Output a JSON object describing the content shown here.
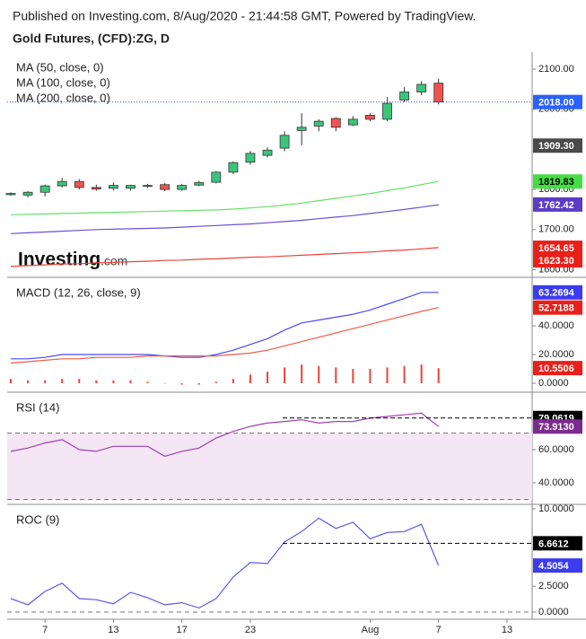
{
  "header": {
    "published": "Published on Investing.com, 8/Aug/2020 - 21:44:58 GMT, Powered by TradingView.",
    "title": "Gold Futures, (CFD):ZG, D",
    "logo": "Investing",
    "logo_suffix": ".com"
  },
  "x_axis": {
    "xlim": [
      -0.21,
      30.47
    ],
    "xticks": [
      {
        "value": 2,
        "label": "7"
      },
      {
        "value": 6,
        "label": "13"
      },
      {
        "value": 10,
        "label": "17"
      },
      {
        "value": 14,
        "label": "23"
      },
      {
        "value": 21,
        "label": "Aug"
      },
      {
        "value": 25,
        "label": "7"
      },
      {
        "value": 29,
        "label": "13"
      }
    ]
  },
  "chart_data": [
    {
      "type": "candlestick",
      "up_color": "#3cc47c",
      "down_color": "#ef5350",
      "open": [
        1787,
        1786,
        1793,
        1809,
        1820,
        1805,
        1803,
        1803,
        1809,
        1812,
        1800,
        1811,
        1818,
        1843,
        1868,
        1885,
        1903,
        1947,
        1958,
        1977,
        1961,
        1985,
        1975,
        2023,
        2043,
        2065
      ],
      "high": [
        1793,
        1796,
        1812,
        1829,
        1826,
        1812,
        1818,
        1812,
        1814,
        1816,
        1814,
        1822,
        1846,
        1870,
        1896,
        1905,
        1945,
        1990,
        1975,
        1980,
        1983,
        1990,
        2030,
        2055,
        2070,
        2076
      ],
      "low": [
        1784,
        1780,
        1783,
        1805,
        1800,
        1797,
        1797,
        1797,
        1804,
        1796,
        1797,
        1808,
        1815,
        1838,
        1862,
        1880,
        1895,
        1910,
        1945,
        1945,
        1958,
        1970,
        1970,
        2018,
        2035,
        2012
      ],
      "close": [
        1790,
        1793,
        1809,
        1820,
        1805,
        1801,
        1810,
        1810,
        1810,
        1800,
        1810,
        1817,
        1843,
        1867,
        1890,
        1898,
        1935,
        1955,
        1970,
        1955,
        1975,
        1975,
        2015,
        2043,
        2062,
        2018
      ],
      "series": [
        {
          "name": "MA (50, close, 0)",
          "color": "#66e066",
          "values": [
            1737,
            1738,
            1739,
            1740,
            1741,
            1742,
            1743,
            1744,
            1745,
            1746,
            1747,
            1748,
            1749,
            1751,
            1754,
            1757,
            1761,
            1766,
            1772,
            1778,
            1784,
            1790,
            1797,
            1804,
            1812,
            1820
          ]
        },
        {
          "name": "MA (100, close, 0)",
          "color": "#6a4fd8",
          "values": [
            1690,
            1692,
            1694,
            1696,
            1698,
            1700,
            1701,
            1702,
            1703,
            1704,
            1706,
            1708,
            1710,
            1712,
            1714,
            1717,
            1720,
            1723,
            1727,
            1731,
            1735,
            1740,
            1745,
            1750,
            1756,
            1762
          ]
        },
        {
          "name": "MA (200, close, 0)",
          "color": "#e8453c",
          "values": [
            1608,
            1610,
            1612,
            1614,
            1615,
            1617,
            1618,
            1620,
            1621,
            1623,
            1624,
            1626,
            1627,
            1629,
            1631,
            1632,
            1634,
            1636,
            1638,
            1640,
            1642,
            1644,
            1647,
            1649,
            1652,
            1655
          ]
        }
      ],
      "ylim": [
        1583.2,
        2133.6
      ],
      "yticks": [
        {
          "value": 2100,
          "label": "2100.00"
        },
        {
          "value": 2000,
          "label": "2000.00"
        },
        {
          "value": 1800,
          "label": "1800.00"
        },
        {
          "value": 1700,
          "label": "1700.00"
        },
        {
          "value": 1600,
          "label": "1600.00"
        }
      ],
      "badges": [
        {
          "value": 2018,
          "label": "2018.00",
          "color": "#2962ff",
          "text_color": "#ffffff",
          "line": "dotted"
        },
        {
          "value": 1909.3,
          "label": "1909.30",
          "color": "#4a4a4a",
          "text_color": "#ffffff"
        },
        {
          "value": 1819.83,
          "label": "1819.83",
          "color": "#44dd44",
          "text_color": "#000000"
        },
        {
          "value": 1762.42,
          "label": "1762.42",
          "color": "#5b3cc4",
          "text_color": "#ffffff"
        },
        {
          "value": 1654.65,
          "label": "1654.65",
          "color": "#e8201a",
          "text_color": "#ffffff"
        },
        {
          "value": 1623.3,
          "label": "1623.30",
          "color": "#e8201a",
          "text_color": "#ffffff"
        }
      ]
    },
    {
      "type": "indicator",
      "title": "MACD (12, 26, close, 9)",
      "series": [
        {
          "style": "bar",
          "color": "#e8453c",
          "values": [
            3,
            2,
            2,
            3,
            3,
            2,
            2,
            2,
            1,
            0,
            -1,
            -1,
            1,
            3,
            6,
            8,
            11,
            13,
            12,
            11,
            10,
            10,
            11,
            12,
            13,
            10.5506
          ]
        },
        {
          "style": "line",
          "color": "#4a4af0",
          "values": [
            17,
            17,
            18,
            20,
            20,
            20,
            20,
            20,
            20,
            19,
            18,
            18,
            20,
            23,
            27,
            31,
            37,
            42,
            44,
            46,
            48,
            51,
            55,
            59,
            63.2694,
            63.2694
          ]
        },
        {
          "style": "line",
          "color": "#f05a4a",
          "values": [
            14,
            15,
            16,
            17,
            17,
            18,
            18,
            18,
            19,
            19,
            19,
            19,
            19,
            20,
            21,
            23,
            26,
            29,
            32,
            35,
            38,
            41,
            44,
            47,
            50,
            52.7188
          ]
        }
      ],
      "ylim": [
        -5,
        71.9
      ],
      "yticks": [
        {
          "value": 40,
          "label": "40.0000"
        },
        {
          "value": 20,
          "label": "20.0000"
        },
        {
          "value": 0,
          "label": "0.0000"
        }
      ],
      "badges": [
        {
          "value": 63.2694,
          "label": "63.2694",
          "color": "#3b3bf0",
          "text_color": "#ffffff"
        },
        {
          "value": 52.7188,
          "label": "52.7188",
          "color": "#e8201a",
          "text_color": "#ffffff"
        },
        {
          "value": 10.5506,
          "label": "10.5506",
          "color": "#e8201a",
          "text_color": "#ffffff"
        }
      ]
    },
    {
      "type": "indicator",
      "title": "RSI (14)",
      "band": [
        30,
        70
      ],
      "band_color": "#f4e6f4",
      "levels": [
        70,
        30
      ],
      "series": [
        {
          "style": "line",
          "color": "#a040b0",
          "values": [
            59,
            61,
            64,
            66,
            60,
            59,
            62,
            62,
            62,
            56,
            59,
            61,
            67,
            71,
            74,
            76,
            77,
            78,
            76,
            77,
            77,
            79,
            80,
            81,
            82,
            73.913
          ]
        }
      ],
      "ylim": [
        28.1,
        93
      ],
      "yticks": [
        {
          "value": 60,
          "label": "60.0000"
        },
        {
          "value": 40,
          "label": "40.0000"
        }
      ],
      "badges": [
        {
          "value": 79.0619,
          "label": "79.0619",
          "color": "#000000",
          "text_color": "#ffffff",
          "line": "dashed"
        },
        {
          "value": 73.913,
          "label": "73.9130",
          "color": "#7b2b8e",
          "text_color": "#ffffff"
        }
      ]
    },
    {
      "type": "indicator",
      "title": "ROC (9)",
      "levels": [
        0
      ],
      "series": [
        {
          "style": "line",
          "color": "#5a5ae6",
          "values": [
            1.3,
            0.7,
            2,
            2.8,
            1.3,
            1.2,
            0.8,
            1.9,
            1.4,
            0.7,
            0.9,
            0.4,
            1.3,
            3.4,
            4.8,
            4.7,
            6.8,
            7.8,
            9.1,
            8.1,
            8.7,
            7.1,
            7.7,
            7.8,
            8.5,
            4.5054
          ]
        }
      ],
      "ylim": [
        -0.7,
        10.17
      ],
      "yticks": [
        {
          "value": 10,
          "label": "10.0000"
        },
        {
          "value": 2.5,
          "label": "2.5000"
        },
        {
          "value": 0,
          "label": "0.0000"
        }
      ],
      "badges": [
        {
          "value": 6.6612,
          "label": "6.6612",
          "color": "#000000",
          "text_color": "#ffffff",
          "line": "dashed"
        },
        {
          "value": 4.5054,
          "label": "4.5054",
          "color": "#3b3bf0",
          "text_color": "#ffffff"
        }
      ]
    }
  ]
}
